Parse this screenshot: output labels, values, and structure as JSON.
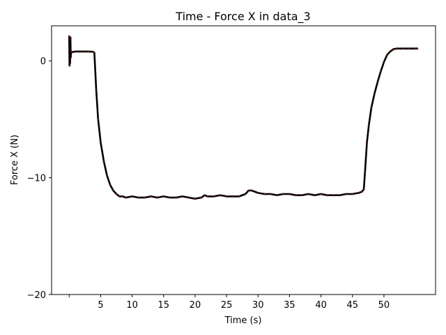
{
  "chart_data": {
    "type": "line",
    "title": "Time - Force X in data_3",
    "xlabel": "Time (s)",
    "ylabel": "Force X (N)",
    "xlim": [
      -2.8,
      58.2
    ],
    "ylim": [
      -20,
      3
    ],
    "x_ticks": [
      0,
      5,
      10,
      15,
      20,
      25,
      30,
      35,
      40,
      45,
      50
    ],
    "x_tick_labels": [
      "",
      "5",
      "10",
      "15",
      "20",
      "25",
      "30",
      "35",
      "40",
      "45",
      "50"
    ],
    "y_ticks": [
      0,
      -10,
      -20
    ],
    "y_tick_labels": [
      "0",
      "−10",
      "−20"
    ],
    "grid": false,
    "legend": "none",
    "series": [
      {
        "color": "#000000",
        "marker_color": "#d62728",
        "x": [
          0.0,
          0.05,
          0.1,
          0.15,
          0.2,
          0.25,
          0.3,
          0.5,
          1.0,
          2.0,
          3.0,
          3.8,
          4.0,
          4.3,
          4.6,
          5.0,
          5.5,
          6.0,
          6.5,
          7.0,
          7.5,
          8.0,
          8.5,
          9.0,
          10.0,
          11.0,
          12.0,
          13.0,
          14.0,
          15.0,
          16.0,
          17.0,
          18.0,
          19.0,
          20.0,
          21.0,
          21.5,
          22.0,
          23.0,
          24.0,
          25.0,
          26.0,
          27.0,
          28.0,
          28.5,
          29.0,
          30.0,
          31.0,
          32.0,
          33.0,
          34.0,
          35.0,
          36.0,
          37.0,
          38.0,
          39.0,
          40.0,
          41.0,
          42.0,
          43.0,
          44.0,
          45.0,
          46.0,
          46.5,
          46.8,
          47.0,
          47.3,
          47.6,
          48.0,
          48.5,
          49.0,
          49.5,
          50.0,
          50.5,
          51.0,
          51.5,
          52.0,
          53.0,
          54.0,
          55.0,
          55.3
        ],
        "y": [
          2.1,
          -0.4,
          1.8,
          -0.2,
          2.0,
          0.3,
          0.8,
          0.75,
          0.8,
          0.8,
          0.8,
          0.78,
          0.7,
          -2.5,
          -5.0,
          -7.0,
          -8.6,
          -9.8,
          -10.6,
          -11.1,
          -11.4,
          -11.6,
          -11.6,
          -11.7,
          -11.6,
          -11.7,
          -11.7,
          -11.6,
          -11.7,
          -11.6,
          -11.7,
          -11.7,
          -11.6,
          -11.7,
          -11.8,
          -11.7,
          -11.5,
          -11.6,
          -11.6,
          -11.5,
          -11.6,
          -11.6,
          -11.6,
          -11.4,
          -11.1,
          -11.1,
          -11.3,
          -11.4,
          -11.4,
          -11.5,
          -11.4,
          -11.4,
          -11.5,
          -11.5,
          -11.4,
          -11.5,
          -11.4,
          -11.5,
          -11.5,
          -11.5,
          -11.4,
          -11.4,
          -11.3,
          -11.2,
          -11.0,
          -9.5,
          -7.0,
          -5.5,
          -4.0,
          -2.8,
          -1.8,
          -0.9,
          -0.1,
          0.5,
          0.8,
          1.0,
          1.05,
          1.05,
          1.05,
          1.05,
          1.05
        ]
      }
    ]
  }
}
